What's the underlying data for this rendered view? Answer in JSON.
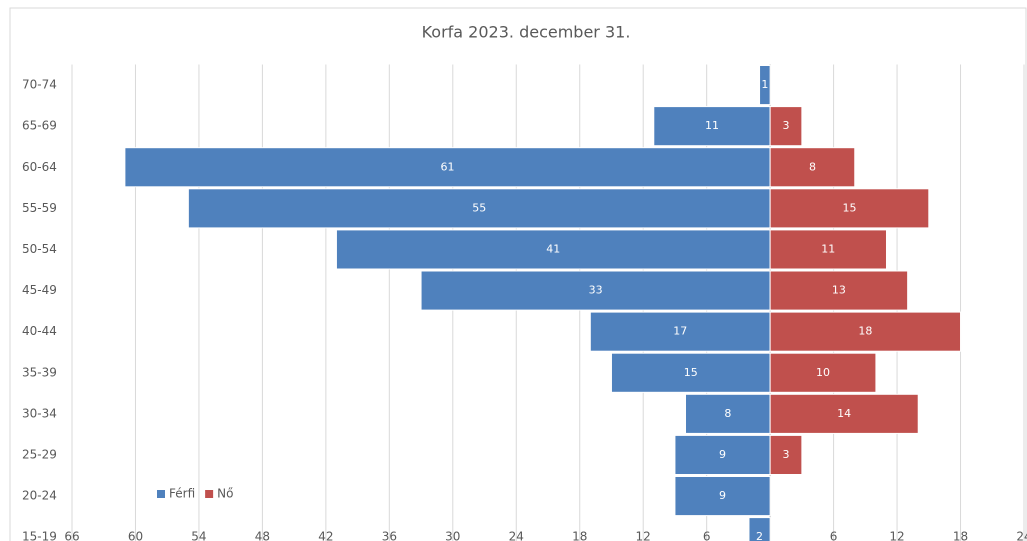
{
  "chart_data": {
    "type": "population-pyramid",
    "title": "Korfa 2023. december 31.",
    "categories": [
      "70-74",
      "65-69",
      "60-64",
      "55-59",
      "50-54",
      "45-49",
      "40-44",
      "35-39",
      "30-34",
      "25-29",
      "20-24",
      "15-19"
    ],
    "series": [
      {
        "name": "Férfi",
        "color": "#4f81bd",
        "values": [
          -1,
          -11,
          -61,
          -55,
          -41,
          -33,
          -17,
          -15,
          -8,
          -9,
          -9,
          -2
        ],
        "value_labels": [
          "1",
          "11",
          "61",
          "55",
          "41",
          "33",
          "17",
          "15",
          "8",
          "9",
          "9",
          "2"
        ]
      },
      {
        "name": "Nő",
        "color": "#c0504d",
        "values": [
          null,
          3,
          8,
          15,
          11,
          13,
          18,
          10,
          14,
          3,
          null,
          null
        ]
      }
    ],
    "xlim": [
      -66,
      24
    ],
    "xticks": [
      {
        "value": -66,
        "label": "66"
      },
      {
        "value": -60,
        "label": "60"
      },
      {
        "value": -54,
        "label": "54"
      },
      {
        "value": -48,
        "label": "48"
      },
      {
        "value": -42,
        "label": "42"
      },
      {
        "value": -36,
        "label": "36"
      },
      {
        "value": -30,
        "label": "30"
      },
      {
        "value": -24,
        "label": "24"
      },
      {
        "value": -18,
        "label": "18"
      },
      {
        "value": -12,
        "label": "12"
      },
      {
        "value": -6,
        "label": "6"
      },
      6,
      12,
      18,
      24
    ],
    "grid": true,
    "legend": "bottom-left"
  }
}
